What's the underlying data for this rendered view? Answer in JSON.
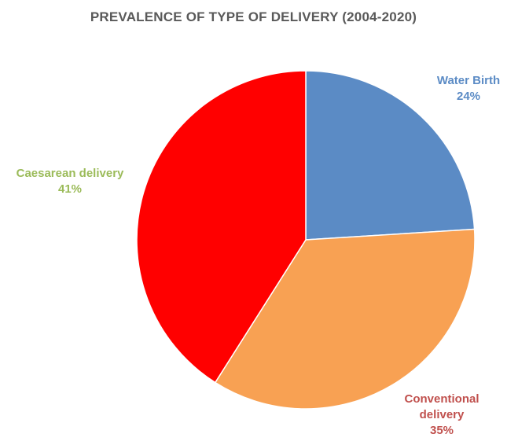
{
  "chart_data": {
    "type": "pie",
    "title": "PREVALENCE OF TYPE OF DELIVERY (2004-2020)",
    "slices": [
      {
        "name": "Water Birth",
        "label_lines": [
          "Water Birth"
        ],
        "percent_label": "24%",
        "value": 24,
        "color": "#5B8BC5",
        "label_color": "#5B8BC5"
      },
      {
        "name": "Conventional delivery",
        "label_lines": [
          "Conventional",
          "delivery"
        ],
        "percent_label": "35%",
        "value": 35,
        "color": "#F8A153",
        "label_color": "#C0504D"
      },
      {
        "name": "Caesarean delivery",
        "label_lines": [
          "Caesarean delivery"
        ],
        "percent_label": "41%",
        "value": 41,
        "color": "#FF0000",
        "label_color": "#9BBB59"
      }
    ],
    "start_angle": "12 o'clock",
    "direction": "clockwise",
    "legend": "none"
  }
}
